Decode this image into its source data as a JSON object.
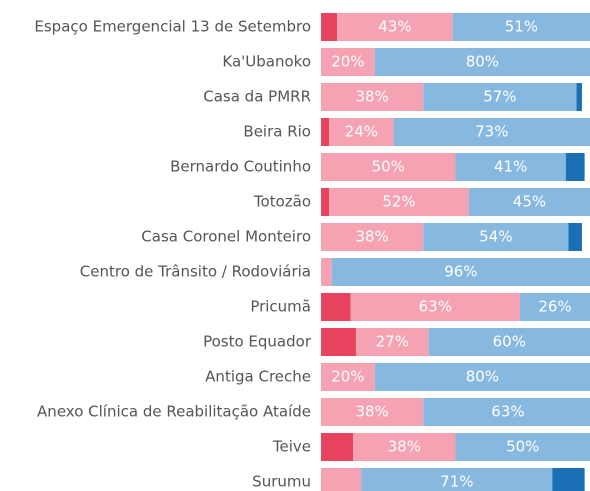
{
  "chart_data": {
    "type": "stacked-bar-horizontal",
    "categories": [
      "Espaço Emergencial 13 de Setembro",
      "Ka'Ubanoko",
      "Casa da PMRR",
      "Beira Rio",
      "Bernardo Coutinho",
      "Totozão",
      "Casa Coronel Monteiro",
      "Centro de Trânsito / Rodoviária",
      "Pricumã",
      "Posto Equador",
      "Antiga Creche",
      "Anexo Clínica de Reabilitação Ataíde",
      "Teive",
      "Surumu"
    ],
    "xlim": [
      0,
      100
    ],
    "series": [
      {
        "color": "#e8435e",
        "values": [
          6,
          0,
          0,
          3,
          0,
          3,
          0,
          0,
          11,
          13,
          0,
          0,
          12,
          0
        ],
        "value_labels": [
          null,
          null,
          null,
          null,
          null,
          null,
          null,
          null,
          null,
          null,
          null,
          null,
          null,
          null
        ]
      },
      {
        "color": "#f5a3b2",
        "values": [
          43,
          20,
          38,
          24,
          50,
          52,
          38,
          4,
          63,
          27,
          20,
          38,
          38,
          15
        ],
        "value_labels": [
          "43%",
          "20%",
          "38%",
          "24%",
          "50%",
          "52%",
          "38%",
          null,
          "63%",
          "27%",
          "20%",
          "38%",
          "38%",
          null
        ]
      },
      {
        "color": "#86b8e0",
        "values": [
          51,
          80,
          57,
          73,
          41,
          45,
          54,
          96,
          26,
          60,
          80,
          63,
          50,
          71
        ],
        "value_labels": [
          "51%",
          "80%",
          "57%",
          "73%",
          "41%",
          "45%",
          "54%",
          "96%",
          "26%",
          "60%",
          "80%",
          "63%",
          "50%",
          "71%"
        ]
      },
      {
        "color": "#1a6fb5",
        "values": [
          0,
          0,
          2,
          0,
          7,
          0,
          5,
          0,
          0,
          0,
          0,
          0,
          0,
          12
        ],
        "value_labels": [
          null,
          null,
          null,
          null,
          null,
          null,
          null,
          null,
          null,
          null,
          null,
          null,
          null,
          null
        ]
      }
    ]
  }
}
